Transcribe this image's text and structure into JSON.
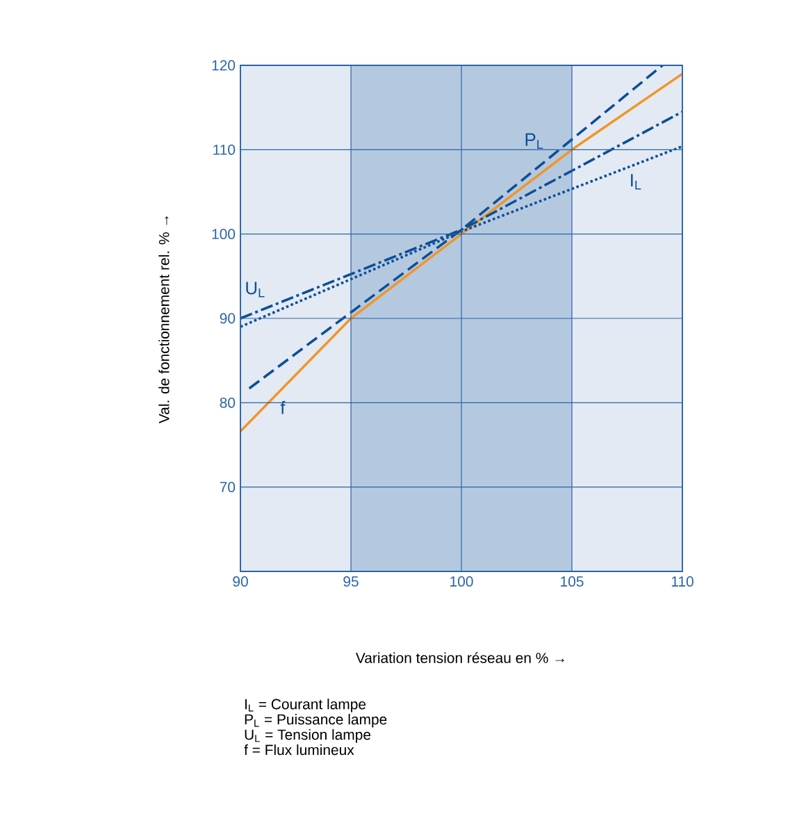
{
  "chart_data": {
    "type": "line",
    "xlabel": "Variation tension réseau en % →",
    "ylabel": "Val. de fonctionnement rel. % →",
    "xlim": [
      90,
      110
    ],
    "xticks": [
      90,
      95,
      100,
      105,
      110
    ],
    "ylim": [
      60,
      120
    ],
    "yticks": [
      70,
      80,
      90,
      100,
      110,
      120
    ],
    "grid": true,
    "marker": "none",
    "bands": [
      {
        "axis": "x",
        "from": 90,
        "to": 95,
        "color": "#e3eaf3"
      },
      {
        "axis": "x",
        "from": 95,
        "to": 105,
        "color": "#b4c9e0"
      },
      {
        "axis": "x",
        "from": 105,
        "to": 110,
        "color": "#e3eaf3"
      }
    ],
    "series": [
      {
        "color": "#f0962a",
        "line_style": "solid",
        "x": [
          90,
          95,
          100,
          105,
          110
        ],
        "values": [
          76.6,
          90,
          100,
          110,
          119
        ]
      },
      {
        "color": "#0d4f95",
        "line_style": "dashed",
        "x": [
          90.4,
          100,
          109.1
        ],
        "values": [
          81.7,
          100.5,
          120
        ]
      },
      {
        "color": "#0d4f95",
        "line_style": "dashdot",
        "x": [
          90,
          100,
          110
        ],
        "values": [
          90,
          100.5,
          114.5
        ]
      },
      {
        "color": "#0d4f95",
        "line_style": "dotted",
        "x": [
          90,
          100,
          110
        ],
        "values": [
          89,
          100.3,
          110.4
        ]
      }
    ],
    "annotations": [
      {
        "text": "P$_{L}$",
        "x": 104,
        "y": 109.1
      },
      {
        "text": "I$_{L}$",
        "x": 107.4,
        "y": 107.8
      },
      {
        "text": "U$_{L}$",
        "x": 91.4,
        "y": 91.5
      },
      {
        "text": "f",
        "x": 91.6,
        "y": 80.9
      },
      "I$_{L}$ = Courant lampe",
      "P$_{L}$ = Puissance lampe",
      "U$_{L}$ = Tension lampe",
      "f = Flux lumineux"
    ]
  }
}
